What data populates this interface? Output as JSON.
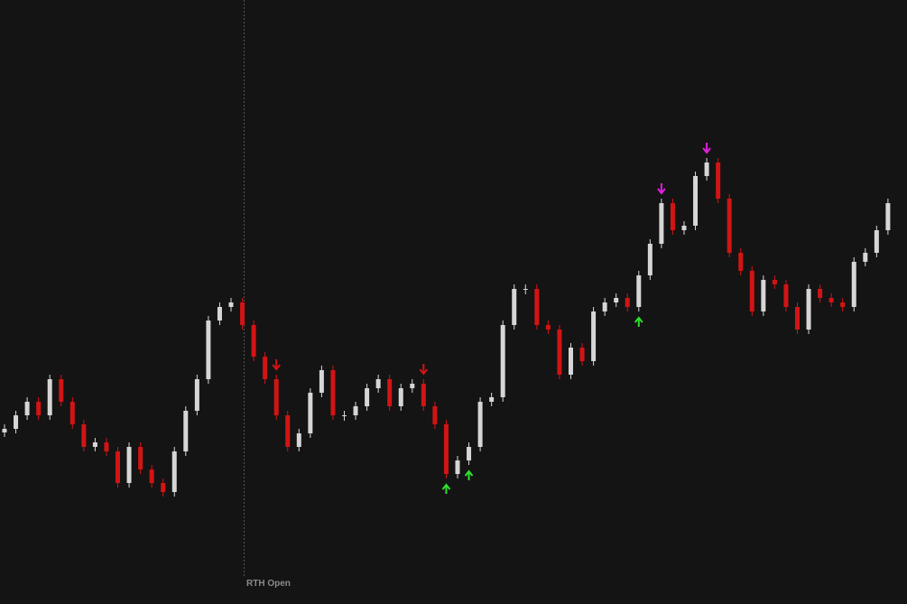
{
  "chart_data": {
    "type": "candlestick",
    "annotation": "RTH Open",
    "ylim": [
      0,
      669
    ],
    "up_color": "#d6d6d6",
    "down_color": "#d21414",
    "open": [
      190,
      194,
      209,
      224,
      209,
      249,
      224,
      199,
      174,
      179,
      169,
      134,
      174,
      149,
      134,
      124,
      169,
      214,
      249,
      314,
      329,
      334,
      309,
      274,
      249,
      209,
      174,
      189,
      234,
      259,
      209,
      209,
      219,
      239,
      249,
      219,
      239,
      244,
      219,
      199,
      144,
      159,
      174,
      224,
      229,
      309,
      349,
      349,
      309,
      304,
      254,
      284,
      269,
      324,
      334,
      339,
      329,
      364,
      399,
      444,
      414,
      419,
      474,
      489,
      449,
      389,
      369,
      324,
      359,
      354,
      329,
      304,
      349,
      339,
      334,
      329,
      379,
      389,
      414
    ],
    "close": [
      194,
      209,
      224,
      209,
      249,
      224,
      199,
      174,
      179,
      169,
      134,
      174,
      149,
      134,
      124,
      169,
      214,
      249,
      314,
      329,
      334,
      309,
      274,
      249,
      209,
      174,
      189,
      234,
      259,
      209,
      209,
      219,
      239,
      249,
      219,
      239,
      244,
      219,
      199,
      144,
      159,
      174,
      224,
      229,
      309,
      349,
      349,
      309,
      304,
      254,
      284,
      269,
      324,
      334,
      339,
      329,
      364,
      399,
      444,
      414,
      419,
      474,
      489,
      449,
      389,
      369,
      324,
      359,
      354,
      329,
      304,
      349,
      339,
      334,
      329,
      379,
      389,
      414,
      444
    ],
    "signals": [
      {
        "at": 58,
        "direction": "down",
        "color": "#e21ee2"
      },
      {
        "at": 62,
        "direction": "down",
        "color": "#e21ee2"
      },
      {
        "at": 39,
        "direction": "up",
        "color": "#2ee02e"
      },
      {
        "at": 41,
        "direction": "up",
        "color": "#2ee02e"
      },
      {
        "at": 56,
        "direction": "up",
        "color": "#2ee02e"
      },
      {
        "at": 24,
        "direction": "down",
        "color": "#d21414"
      },
      {
        "at": 37,
        "direction": "down",
        "color": "#d21414"
      }
    ]
  }
}
